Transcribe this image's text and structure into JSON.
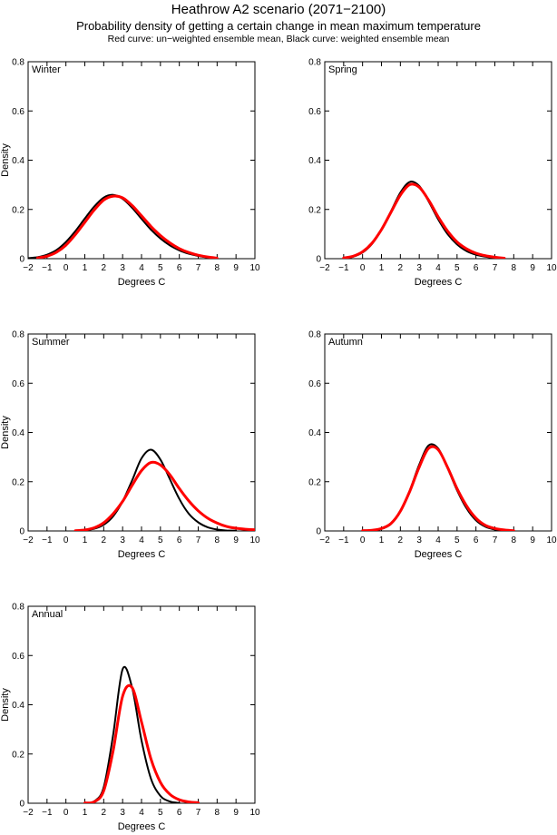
{
  "figure": {
    "title": "Heathrow A2 scenario (2071−2100)",
    "subtitle": "Probability density of getting a certain change in mean maximum temperature",
    "legend_note": "Red curve: un−weighted ensemble mean, Black curve: weighted ensemble mean"
  },
  "colors": {
    "weighted": "#000000",
    "unweighted": "#ff0000",
    "axes": "#000000",
    "background": "#ffffff"
  },
  "chart_data": [
    {
      "type": "line",
      "panel_label": "Winter",
      "xlabel": "Degrees C",
      "ylabel": "Density",
      "xlim": [
        -2,
        10
      ],
      "ylim": [
        0,
        0.8
      ],
      "xticks": [
        -2,
        -1,
        0,
        1,
        2,
        3,
        4,
        5,
        6,
        7,
        8,
        9,
        10
      ],
      "yticks": [
        0,
        0.2,
        0.4,
        0.6,
        0.8
      ],
      "grid": false,
      "legend_position": "none",
      "x": [
        -2,
        -1.5,
        -1,
        -0.5,
        0,
        0.5,
        1,
        1.5,
        2,
        2.5,
        3,
        3.5,
        4,
        4.5,
        5,
        5.5,
        6,
        6.5,
        7,
        7.5,
        8,
        8.5,
        9,
        9.5,
        10
      ],
      "series": [
        {
          "key": "weighted",
          "name": "weighted ensemble mean",
          "color": "#000000",
          "y": [
            0.002,
            0.006,
            0.016,
            0.035,
            0.068,
            0.112,
            0.163,
            0.212,
            0.248,
            0.259,
            0.243,
            0.207,
            0.162,
            0.118,
            0.082,
            0.054,
            0.034,
            0.02,
            0.011,
            0.005,
            0.002,
            null,
            null,
            null,
            null
          ]
        },
        {
          "key": "unweighted",
          "name": "un−weighted ensemble mean",
          "color": "#ff0000",
          "y": [
            null,
            0.003,
            0.01,
            0.026,
            0.055,
            0.098,
            0.148,
            0.198,
            0.238,
            0.254,
            0.247,
            0.216,
            0.174,
            0.131,
            0.094,
            0.064,
            0.041,
            0.025,
            0.014,
            0.007,
            0.002,
            null,
            null,
            null,
            null
          ]
        }
      ]
    },
    {
      "type": "line",
      "panel_label": "Spring",
      "xlabel": "Degrees C",
      "ylabel": "",
      "xlim": [
        -2,
        10
      ],
      "ylim": [
        0,
        0.8
      ],
      "xticks": [
        -2,
        -1,
        0,
        1,
        2,
        3,
        4,
        5,
        6,
        7,
        8,
        9,
        10
      ],
      "yticks": [
        0,
        0.2,
        0.4,
        0.6,
        0.8
      ],
      "grid": false,
      "legend_position": "none",
      "x": [
        -2,
        -1.5,
        -1,
        -0.5,
        0,
        0.5,
        1,
        1.5,
        2,
        2.5,
        3,
        3.5,
        4,
        4.5,
        5,
        5.5,
        6,
        6.5,
        7,
        7.5,
        8,
        8.5,
        9,
        9.5,
        10
      ],
      "series": [
        {
          "key": "weighted",
          "name": "weighted ensemble mean",
          "color": "#000000",
          "y": [
            null,
            null,
            0.002,
            0.008,
            0.025,
            0.06,
            0.118,
            0.192,
            0.268,
            0.312,
            0.295,
            0.232,
            0.16,
            0.1,
            0.058,
            0.031,
            0.016,
            0.008,
            0.003,
            0.001,
            null,
            null,
            null,
            null,
            null
          ]
        },
        {
          "key": "unweighted",
          "name": "un−weighted ensemble mean",
          "color": "#ff0000",
          "y": [
            null,
            null,
            0.003,
            0.01,
            0.028,
            0.063,
            0.118,
            0.188,
            0.258,
            0.301,
            0.29,
            0.237,
            0.17,
            0.112,
            0.068,
            0.04,
            0.022,
            0.012,
            0.006,
            0.002,
            null,
            null,
            null,
            null,
            null
          ]
        }
      ]
    },
    {
      "type": "line",
      "panel_label": "Summer",
      "xlabel": "Degrees C",
      "ylabel": "Density",
      "xlim": [
        -2,
        10
      ],
      "ylim": [
        0,
        0.8
      ],
      "xticks": [
        -2,
        -1,
        0,
        1,
        2,
        3,
        4,
        5,
        6,
        7,
        8,
        9,
        10
      ],
      "yticks": [
        0,
        0.2,
        0.4,
        0.6,
        0.8
      ],
      "grid": false,
      "legend_position": "none",
      "x": [
        -2,
        -1.5,
        -1,
        -0.5,
        0,
        0.5,
        1,
        1.5,
        2,
        2.5,
        3,
        3.5,
        4,
        4.5,
        5,
        5.5,
        6,
        6.5,
        7,
        7.5,
        8,
        8.5,
        9,
        9.5,
        10
      ],
      "series": [
        {
          "key": "weighted",
          "name": "weighted ensemble mean",
          "color": "#000000",
          "y": [
            null,
            null,
            null,
            null,
            null,
            0.001,
            0.003,
            0.009,
            0.025,
            0.06,
            0.12,
            0.205,
            0.295,
            0.33,
            0.29,
            0.21,
            0.13,
            0.07,
            0.035,
            0.015,
            0.006,
            0.002,
            0.001,
            null,
            null
          ]
        },
        {
          "key": "unweighted",
          "name": "un−weighted ensemble mean",
          "color": "#ff0000",
          "y": [
            null,
            null,
            null,
            null,
            null,
            0.001,
            0.004,
            0.013,
            0.033,
            0.07,
            0.12,
            0.185,
            0.245,
            0.278,
            0.268,
            0.228,
            0.172,
            0.122,
            0.082,
            0.052,
            0.032,
            0.018,
            0.011,
            0.007,
            0.005
          ]
        }
      ]
    },
    {
      "type": "line",
      "panel_label": "Autumn",
      "xlabel": "Degrees C",
      "ylabel": "",
      "xlim": [
        -2,
        10
      ],
      "ylim": [
        0,
        0.8
      ],
      "xticks": [
        -2,
        -1,
        0,
        1,
        2,
        3,
        4,
        5,
        6,
        7,
        8,
        9,
        10
      ],
      "yticks": [
        0,
        0.2,
        0.4,
        0.6,
        0.8
      ],
      "grid": false,
      "legend_position": "none",
      "x": [
        -2,
        -1.5,
        -1,
        -0.5,
        0,
        0.5,
        1,
        1.5,
        2,
        2.5,
        3,
        3.5,
        4,
        4.5,
        5,
        5.5,
        6,
        6.5,
        7,
        7.5,
        8,
        8.5,
        9,
        9.5,
        10
      ],
      "series": [
        {
          "key": "weighted",
          "name": "weighted ensemble mean",
          "color": "#000000",
          "y": [
            null,
            null,
            null,
            null,
            0.001,
            0.002,
            0.008,
            0.028,
            0.08,
            0.165,
            0.27,
            0.348,
            0.335,
            0.255,
            0.165,
            0.092,
            0.043,
            0.017,
            0.006,
            0.001,
            null,
            null,
            null,
            null,
            null
          ]
        },
        {
          "key": "unweighted",
          "name": "un−weighted ensemble mean",
          "color": "#ff0000",
          "y": [
            null,
            null,
            null,
            null,
            0.001,
            0.003,
            0.01,
            0.03,
            0.08,
            0.162,
            0.26,
            0.336,
            0.33,
            0.258,
            0.172,
            0.102,
            0.052,
            0.023,
            0.01,
            0.004,
            0.001,
            null,
            null,
            null,
            null
          ]
        }
      ]
    },
    {
      "type": "line",
      "panel_label": "Annual",
      "xlabel": "Degrees C",
      "ylabel": "Density",
      "xlim": [
        -2,
        10
      ],
      "ylim": [
        0,
        0.8
      ],
      "xticks": [
        -2,
        -1,
        0,
        1,
        2,
        3,
        4,
        5,
        6,
        7,
        8,
        9,
        10
      ],
      "yticks": [
        0,
        0.2,
        0.4,
        0.6,
        0.8
      ],
      "grid": false,
      "legend_position": "none",
      "x": [
        -2,
        -1.5,
        -1,
        -0.5,
        0,
        0.5,
        1,
        1.5,
        2,
        2.5,
        3,
        3.5,
        4,
        4.5,
        5,
        5.5,
        6,
        6.5,
        7,
        7.5,
        8,
        8.5,
        9,
        9.5,
        10
      ],
      "series": [
        {
          "key": "weighted",
          "name": "weighted ensemble mean",
          "color": "#000000",
          "y": [
            null,
            null,
            null,
            null,
            null,
            null,
            0.001,
            0.008,
            0.065,
            0.28,
            0.545,
            0.47,
            0.255,
            0.1,
            0.03,
            0.007,
            0.001,
            null,
            null,
            null,
            null,
            null,
            null,
            null,
            null
          ]
        },
        {
          "key": "unweighted",
          "name": "un−weighted ensemble mean",
          "color": "#ff0000",
          "y": [
            null,
            null,
            null,
            null,
            null,
            null,
            0.001,
            0.006,
            0.05,
            0.215,
            0.435,
            0.47,
            0.33,
            0.18,
            0.085,
            0.036,
            0.014,
            0.005,
            0.002,
            null,
            null,
            null,
            null,
            null,
            null
          ]
        }
      ]
    }
  ]
}
